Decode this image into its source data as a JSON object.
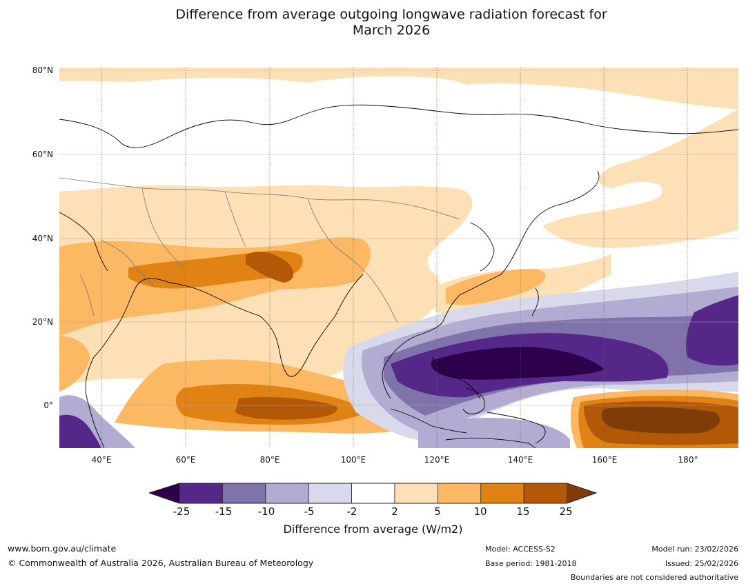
{
  "title": {
    "line1": "Difference from average outgoing longwave radiation forecast for",
    "line2": "March 2026"
  },
  "map": {
    "lat_labels": [
      "80°N",
      "60°N",
      "40°N",
      "20°N",
      "0°"
    ],
    "lon_labels": [
      "40°E",
      "60°E",
      "80°E",
      "100°E",
      "120°E",
      "140°E",
      "160°E",
      "180°"
    ]
  },
  "colorbar": {
    "ticks": [
      "-25",
      "-15",
      "-10",
      "-5",
      "-2",
      "2",
      "5",
      "10",
      "15",
      "25"
    ],
    "colors": [
      "#2d004b",
      "#542788",
      "#8073ac",
      "#b2abd2",
      "#d8daeb",
      "#ffffff",
      "#fee0b6",
      "#fdb863",
      "#e08214",
      "#b35806",
      "#7f3b08"
    ],
    "label": "Difference from average (W/m2)"
  },
  "footer": {
    "website": "www.bom.gov.au/climate",
    "copyright": "© Commonwealth of Australia 2026, Australian Bureau of Meteorology",
    "model": "Model: ACCESS-S2",
    "base_period": "Base period: 1981-2018",
    "model_run": "Model run: 23/02/2026",
    "issued": "Issued: 25/02/2026",
    "disclaimer": "Boundaries are not considered authoritative"
  }
}
